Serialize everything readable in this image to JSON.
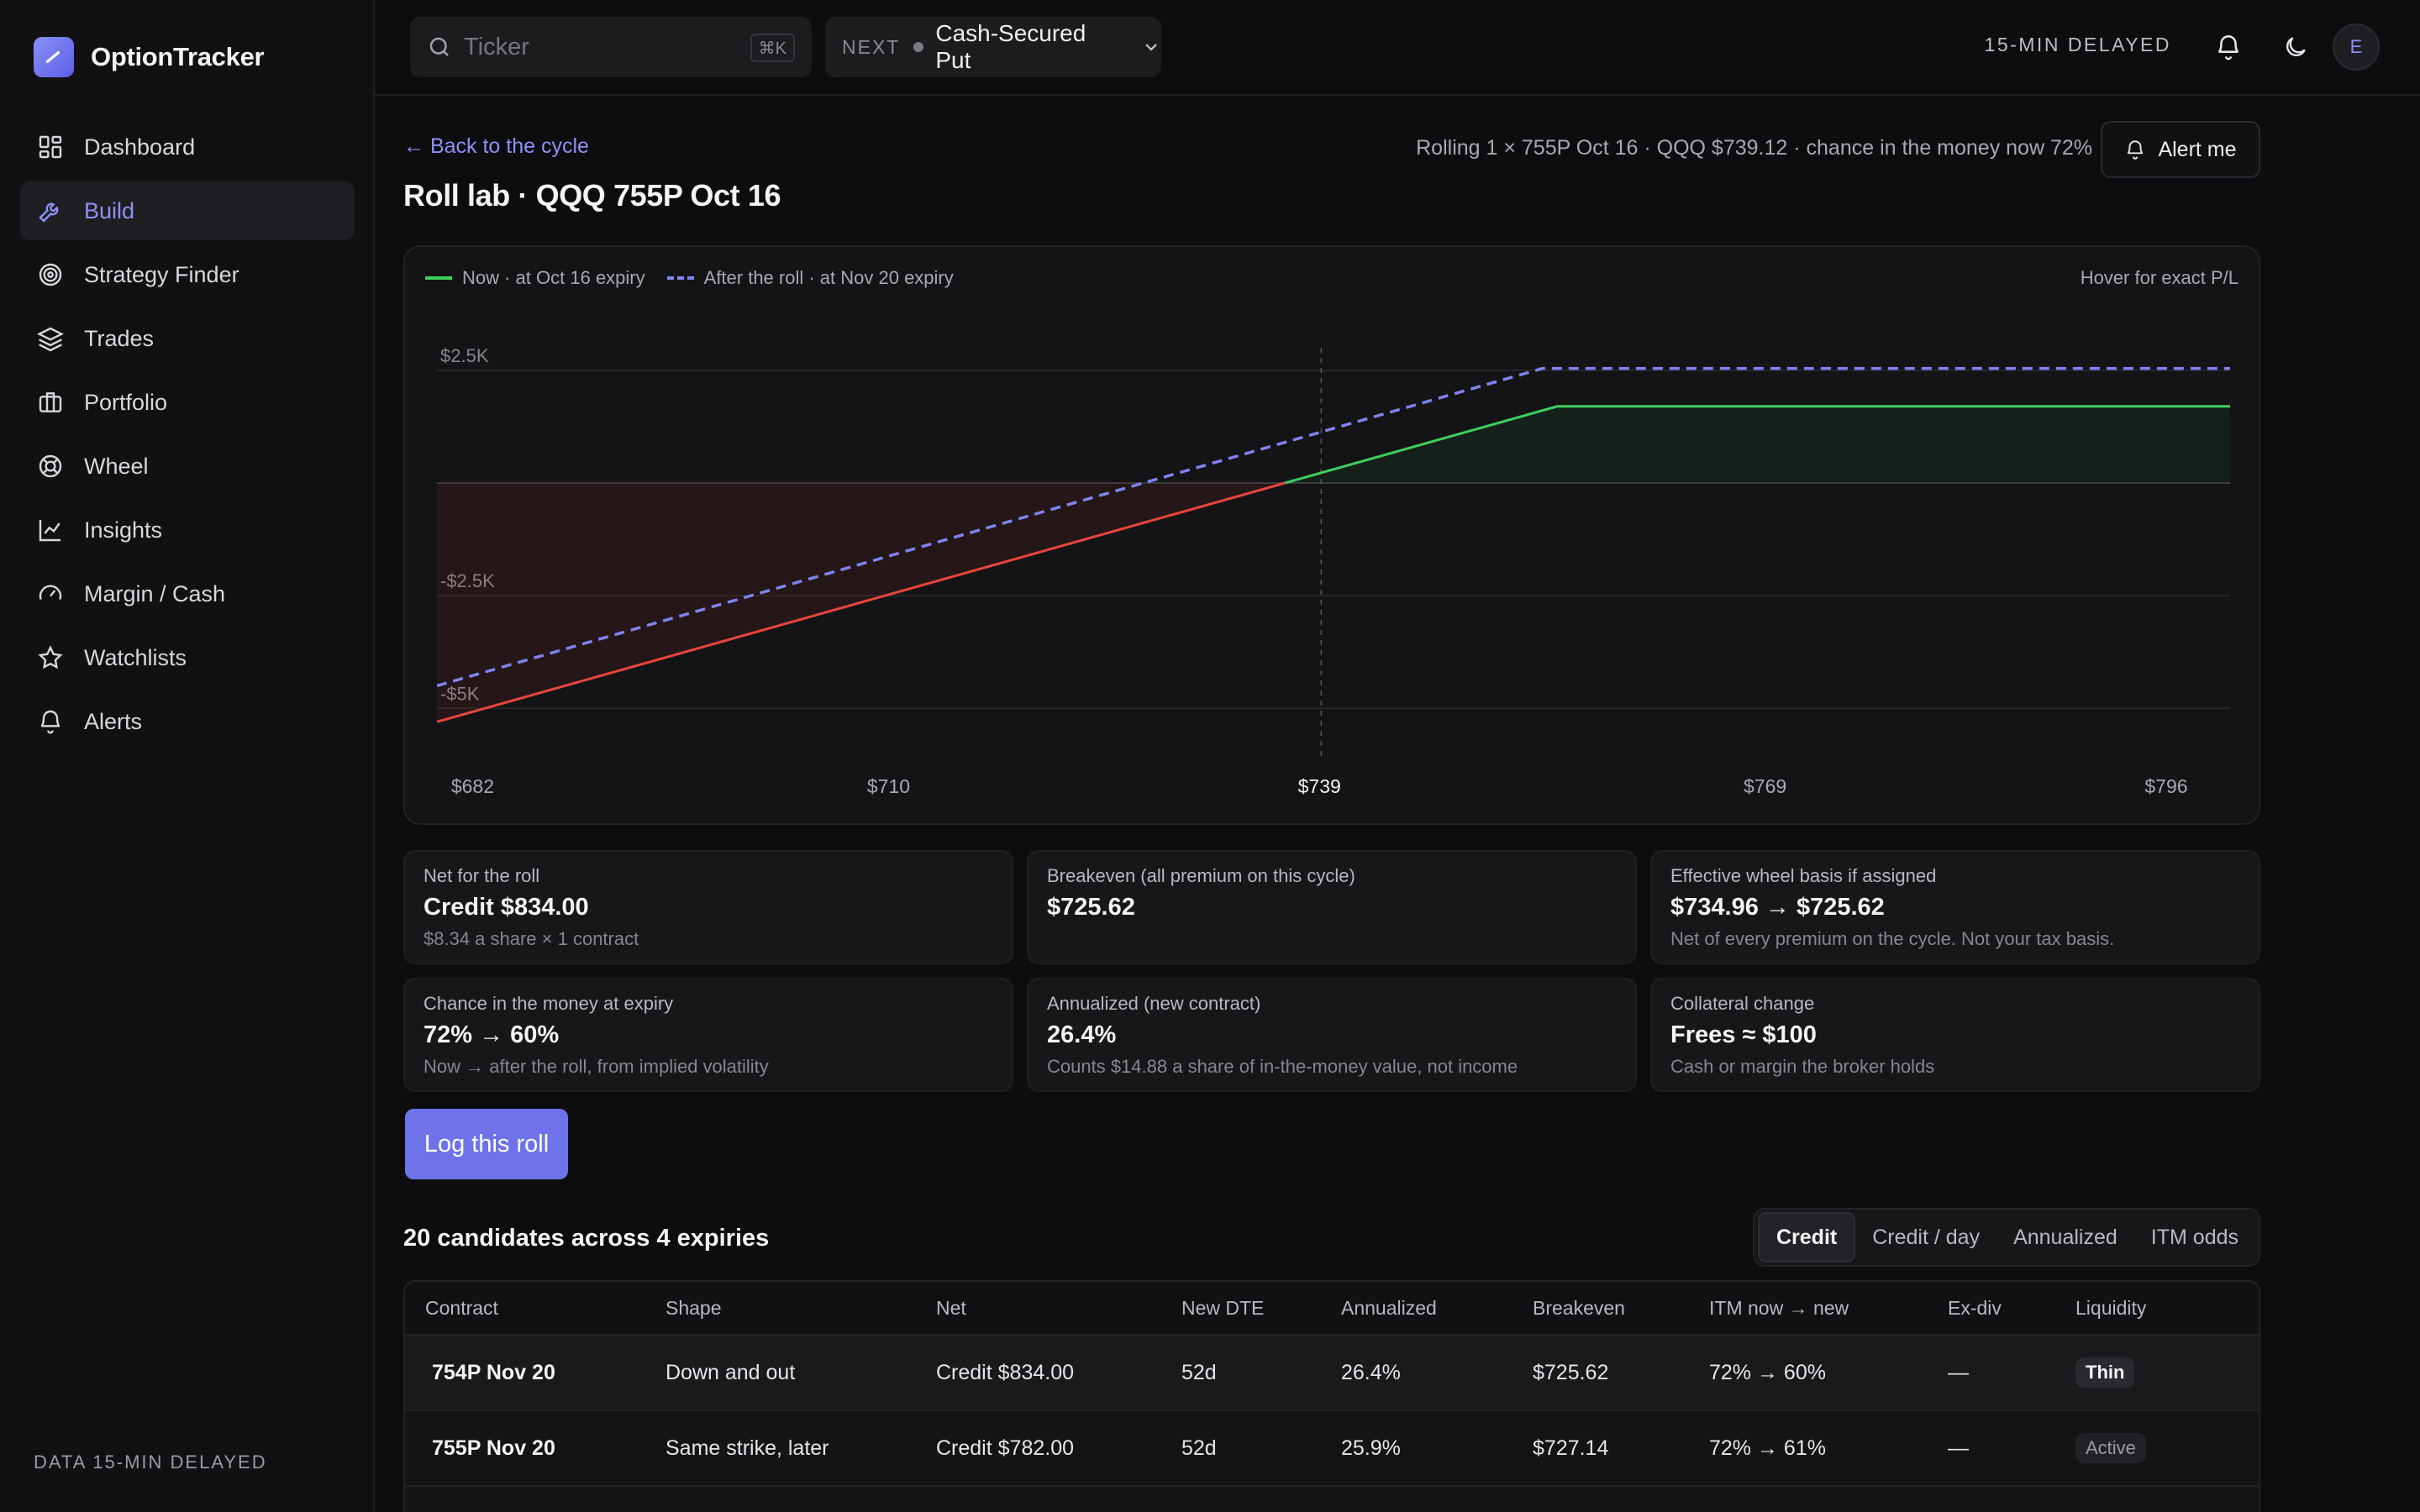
{
  "brand": {
    "name": "OptionTracker"
  },
  "sidebar": {
    "items": [
      {
        "label": "Dashboard",
        "icon": "dashboard-icon",
        "active": false
      },
      {
        "label": "Build",
        "icon": "wrench-icon",
        "active": true
      },
      {
        "label": "Strategy Finder",
        "icon": "target-icon",
        "active": false
      },
      {
        "label": "Trades",
        "icon": "layers-icon",
        "active": false
      },
      {
        "label": "Portfolio",
        "icon": "briefcase-icon",
        "active": false
      },
      {
        "label": "Wheel",
        "icon": "lifebuoy-icon",
        "active": false
      },
      {
        "label": "Insights",
        "icon": "line-chart-icon",
        "active": false
      },
      {
        "label": "Margin / Cash",
        "icon": "gauge-icon",
        "active": false
      },
      {
        "label": "Watchlists",
        "icon": "star-icon",
        "active": false
      },
      {
        "label": "Alerts",
        "icon": "bell-icon",
        "active": false
      }
    ],
    "footer": "DATA 15-MIN DELAYED"
  },
  "topbar": {
    "search_placeholder": "Ticker",
    "search_shortcut": "⌘K",
    "next_label": "NEXT",
    "next_value": "Cash-Secured Put",
    "delayed": "15-MIN DELAYED",
    "avatar_initial": "E"
  },
  "header": {
    "back_link": "← Back to the cycle",
    "context": "Rolling 1 × 755P Oct 16 · QQQ $739.12 · chance in the money now 72%",
    "alert_button": "Alert me",
    "title": "Roll lab · QQQ 755P Oct 16"
  },
  "chart": {
    "legend_now": "Now · at Oct 16 expiry",
    "legend_after": "After the roll · at Nov 20 expiry",
    "hover_hint": "Hover for exact P/L",
    "colors": {
      "now": "#3fcf5c",
      "now_loss": "#e8453c",
      "after": "#7f83f0"
    }
  },
  "chart_data": {
    "type": "line",
    "x_ticks": [
      "$682",
      "$710",
      "$739",
      "$769",
      "$796"
    ],
    "x_tick_values": [
      682,
      710,
      739,
      769,
      796
    ],
    "y_ticks": [
      "$2.5K",
      "-$2.5K",
      "-$5K"
    ],
    "y_tick_values": [
      2500,
      -2500,
      -5000
    ],
    "xlim": [
      679.6,
      800.3
    ],
    "ylim": [
      -5200,
      3000
    ],
    "current_price": 739.12,
    "series": [
      {
        "name": "Now · at Oct 16 expiry",
        "style": "solid",
        "x": [
          679.6,
          755,
          800.3
        ],
        "y": [
          -5300,
          1700,
          1700
        ]
      },
      {
        "name": "After the roll · at Nov 20 expiry",
        "style": "dashed",
        "x": [
          679.6,
          754,
          800.3
        ],
        "y": [
          -4500,
          2540,
          2540
        ]
      }
    ]
  },
  "stats": [
    {
      "label": "Net for the roll",
      "value": "Credit $834.00",
      "sub": "$8.34 a share × 1 contract"
    },
    {
      "label": "Breakeven (all premium on this cycle)",
      "value": "$725.62",
      "sub": ""
    },
    {
      "label": "Effective wheel basis if assigned",
      "value": "$734.96 → $725.62",
      "sub": "Net of every premium on the cycle. Not your tax basis."
    },
    {
      "label": "Chance in the money at expiry",
      "value": "72% → 60%",
      "sub": "Now → after the roll, from implied volatility"
    },
    {
      "label": "Annualized (new contract)",
      "value": "26.4%",
      "sub": "Counts $14.88 a share of in-the-money value, not income"
    },
    {
      "label": "Collateral change",
      "value": "Frees ≈ $100",
      "sub": "Cash or margin the broker holds"
    }
  ],
  "log_button": "Log this roll",
  "candidates": {
    "title": "20 candidates across 4 expiries",
    "sort_options": [
      "Credit",
      "Credit / day",
      "Annualized",
      "ITM odds"
    ],
    "sort_active": "Credit",
    "columns": [
      "Contract",
      "Shape",
      "Net",
      "New DTE",
      "Annualized",
      "Breakeven",
      "ITM now → new",
      "Ex-div",
      "Liquidity"
    ],
    "rows": [
      {
        "contract": "754P Nov 20",
        "shape": "Down and out",
        "net": "Credit $834.00",
        "dte": "52d",
        "annualized": "26.4%",
        "breakeven": "$725.62",
        "itm": "72% → 60%",
        "exdiv": "—",
        "liquidity": "Thin"
      },
      {
        "contract": "755P Nov 20",
        "shape": "Same strike, later",
        "net": "Credit $782.00",
        "dte": "52d",
        "annualized": "25.9%",
        "breakeven": "$727.14",
        "itm": "72% → 61%",
        "exdiv": "—",
        "liquidity": "Active"
      }
    ]
  }
}
